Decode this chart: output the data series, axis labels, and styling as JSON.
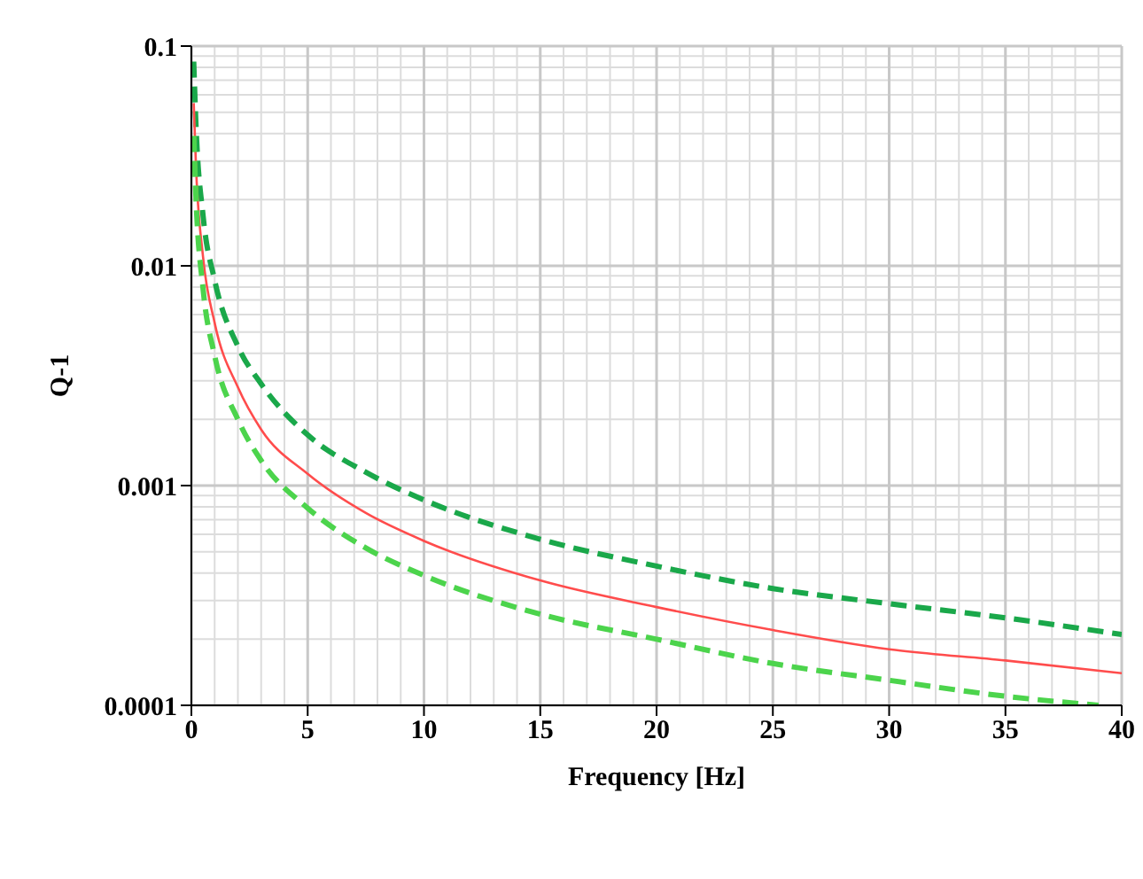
{
  "chart_data": {
    "type": "line",
    "xlabel": "Frequency [Hz]",
    "ylabel": "Q-1",
    "log": "y",
    "grid": true,
    "marker": "none",
    "xlim": [
      0,
      40
    ],
    "xticks": [
      0,
      5,
      10,
      15,
      20,
      25,
      30,
      35,
      40
    ],
    "ylim": [
      0.0001,
      0.1
    ],
    "yticks": [
      0.0001,
      0.001,
      0.01,
      0.1
    ],
    "series": [
      {
        "color": "#1aa84a",
        "line_style": "dashed",
        "x": [
          0.1,
          0.2,
          0.5,
          1,
          2,
          3,
          5,
          7.5,
          10,
          15,
          20,
          25,
          30,
          35,
          40
        ],
        "values": [
          0.085,
          0.043,
          0.017,
          0.0086,
          0.0043,
          0.0029,
          0.0017,
          0.00115,
          0.00086,
          0.00057,
          0.00043,
          0.00034,
          0.00029,
          0.00025,
          0.00021
        ]
      },
      {
        "color": "#ff4c4c",
        "line_style": "solid",
        "x": [
          0.1,
          0.2,
          0.5,
          1,
          2,
          3,
          5,
          7.5,
          10,
          15,
          20,
          25,
          30,
          35,
          40
        ],
        "values": [
          0.055,
          0.028,
          0.011,
          0.0055,
          0.0028,
          0.0018,
          0.00113,
          0.00075,
          0.00056,
          0.00037,
          0.00028,
          0.00022,
          0.00018,
          0.00016,
          0.00014
        ]
      },
      {
        "color": "#4cd44c",
        "line_style": "dashed",
        "x": [
          0.1,
          0.2,
          0.5,
          1,
          2,
          3,
          5,
          7.5,
          10,
          15,
          20,
          25,
          30,
          35,
          39
        ],
        "values": [
          0.039,
          0.02,
          0.0079,
          0.0039,
          0.002,
          0.0013,
          0.00079,
          0.00052,
          0.00039,
          0.00026,
          0.0002,
          0.000155,
          0.00013,
          0.00011,
          0.0001
        ]
      }
    ]
  }
}
